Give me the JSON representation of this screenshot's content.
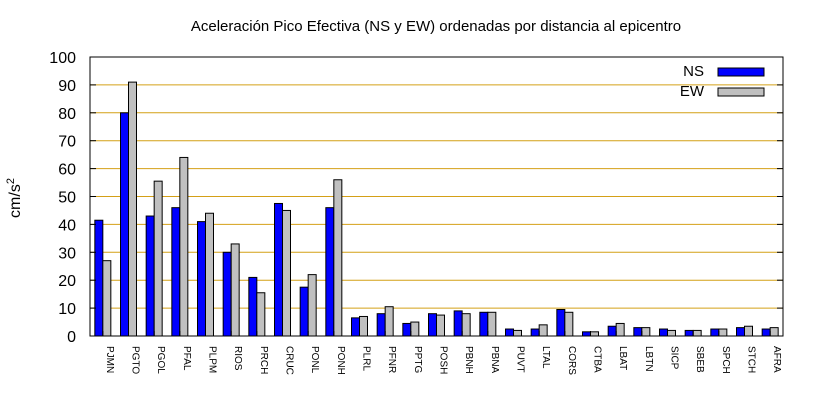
{
  "chart_data": {
    "type": "bar",
    "title": "Aceleración Pico Efectiva (NS y EW) ordenadas por distancia al epicentro",
    "xlabel": "",
    "ylabel": "cm/s",
    "ylabel_superscript": "2",
    "ylim": [
      0,
      100
    ],
    "yticks": [
      0,
      10,
      20,
      30,
      40,
      50,
      60,
      70,
      80,
      90,
      100
    ],
    "grid": true,
    "grid_color": "#d4a017",
    "legend_position": "top-right",
    "categories": [
      "PJMN",
      "PGTO",
      "PGOL",
      "PFAL",
      "PLPM",
      "RIOS",
      "PRCH",
      "CRUC",
      "PONL",
      "PONH",
      "PLRL",
      "PFNR",
      "PPTG",
      "POSH",
      "PBNH",
      "PBNA",
      "PUVT",
      "LTAL",
      "CORS",
      "CTBA",
      "LBAT",
      "LBTN",
      "SICP",
      "SBEB",
      "SPCH",
      "STCH",
      "AFRA"
    ],
    "series": [
      {
        "name": "NS",
        "color": "#0000ff",
        "values": [
          41.5,
          80,
          43,
          46,
          41,
          30,
          21,
          47.5,
          17.5,
          46,
          6.5,
          8,
          4.5,
          8,
          9,
          8.5,
          2.5,
          2.5,
          9.5,
          1.5,
          3.5,
          3,
          2.5,
          2,
          2.5,
          3,
          2.5
        ]
      },
      {
        "name": "EW",
        "color": "#c0c0c0",
        "values": [
          27,
          91,
          55.5,
          64,
          44,
          33,
          15.5,
          45,
          22,
          56,
          7,
          10.5,
          5,
          7.5,
          8,
          8.5,
          2,
          4,
          8.5,
          1.5,
          4.5,
          3,
          2,
          2,
          2.5,
          3.5,
          3
        ]
      }
    ]
  }
}
